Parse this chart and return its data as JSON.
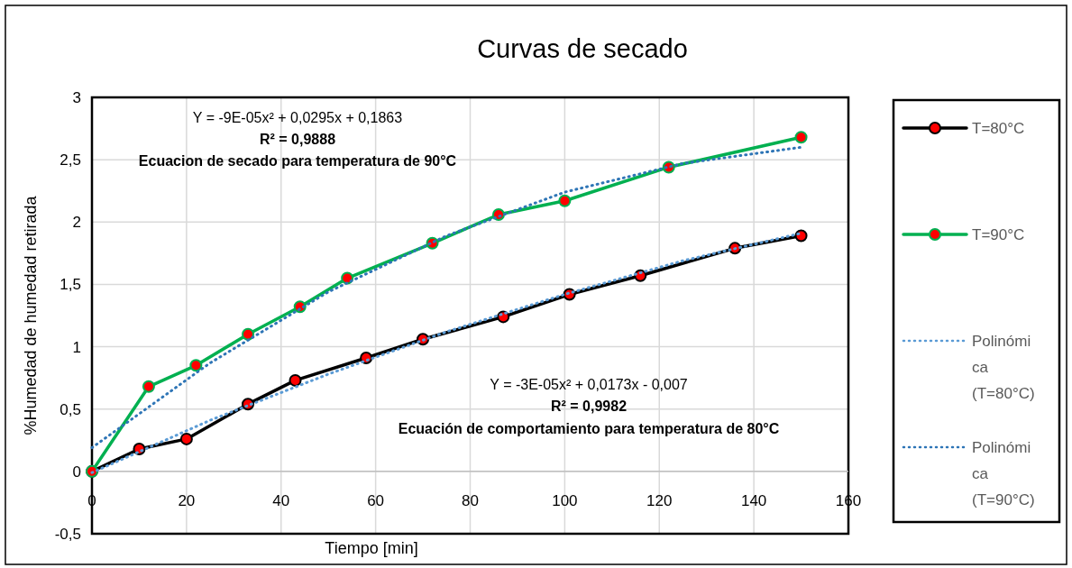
{
  "chart_data": {
    "type": "line",
    "title": "Curvas de secado",
    "xlabel": "Tiempo [min]",
    "ylabel": "%Humedad de humedad retirada",
    "xlim": [
      0,
      160
    ],
    "xticks": [
      0,
      20,
      40,
      60,
      80,
      100,
      120,
      140,
      160
    ],
    "ylim": [
      -0.5,
      3
    ],
    "yticks": [
      {
        "value": -0.5,
        "label": "-0,5"
      },
      0,
      {
        "value": 0.5,
        "label": "0,5"
      },
      1,
      {
        "value": 1.5,
        "label": "1,5"
      },
      2,
      {
        "value": 2.5,
        "label": "2,5"
      },
      3
    ],
    "grid": true,
    "legend": "right",
    "series": [
      {
        "name": "T=80°C",
        "color": "#000000",
        "marker": "circle",
        "line_style": "solid",
        "x": [
          0,
          10,
          20,
          33,
          43,
          58,
          70,
          87,
          101,
          116,
          136,
          150
        ],
        "values": [
          0,
          0.18,
          0.26,
          0.54,
          0.73,
          0.91,
          1.06,
          1.24,
          1.42,
          1.57,
          1.79,
          1.89
        ]
      },
      {
        "name": "T=90°C",
        "color": "#00b050",
        "marker": "circle",
        "line_style": "solid",
        "x": [
          0,
          12,
          22,
          33,
          44,
          54,
          72,
          86,
          100,
          122,
          150
        ],
        "values": [
          0,
          0.68,
          0.85,
          1.1,
          1.32,
          1.55,
          1.83,
          2.06,
          2.17,
          2.44,
          2.68
        ]
      },
      {
        "name": "Polinómica (T=80°C)",
        "color": "#5b9bd5",
        "marker": "none",
        "line_style": "dotted",
        "x": [
          0,
          25,
          50,
          75,
          100,
          125,
          150
        ],
        "values": [
          -0.01,
          0.41,
          0.78,
          1.12,
          1.42,
          1.69,
          1.91
        ]
      },
      {
        "name": "Polinómica (T=90°C)",
        "color": "#2e75b6",
        "marker": "none",
        "line_style": "dotted",
        "x": [
          0,
          25,
          50,
          75,
          100,
          125,
          150
        ],
        "values": [
          0.19,
          0.87,
          1.44,
          1.89,
          2.24,
          2.47,
          2.6
        ]
      }
    ],
    "annotations": [
      "Y = -9E-05x² + 0,0295x + 0,1863",
      "R² = 0,9888",
      "Ecuacion de secado para temperatura de 90°C",
      "Y = -3E-05x² + 0,0173x - 0,007",
      "R² = 0,9982",
      "Ecuación de comportamiento para temperatura de 80°C"
    ]
  }
}
